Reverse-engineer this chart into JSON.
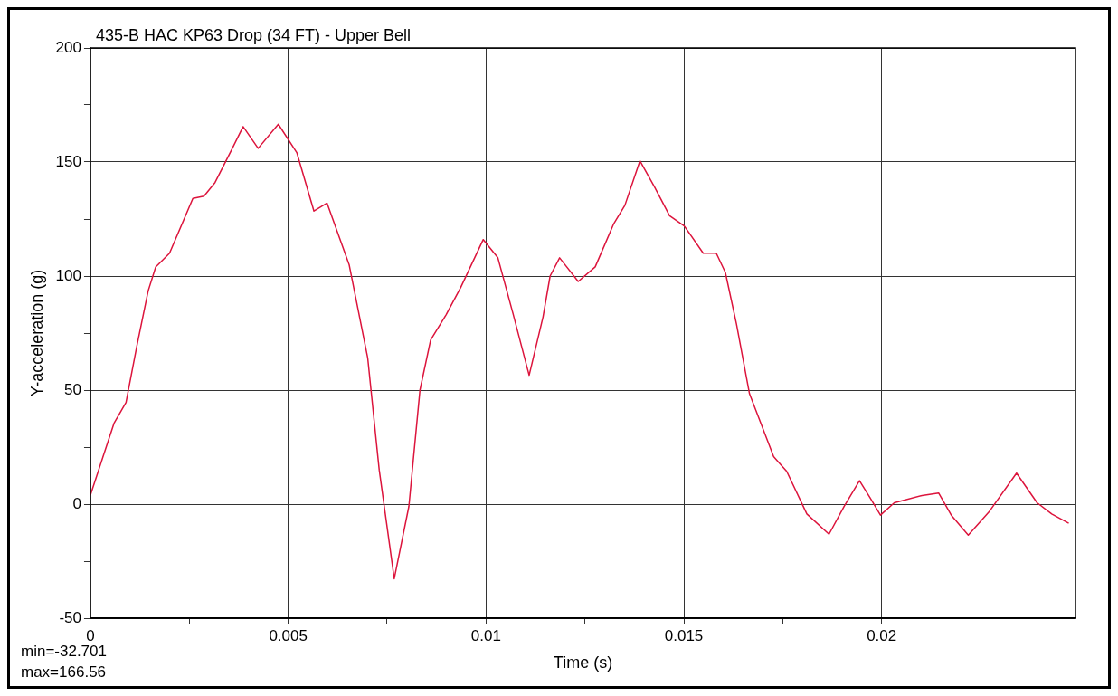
{
  "chart_data": {
    "type": "line",
    "title": "435-B HAC KP63 Drop (34 FT) - Upper Bell",
    "xlabel": "Time (s)",
    "ylabel": "Y-acceleration (g)",
    "annotations": [
      "min=-32.701",
      "max=166.56"
    ],
    "x": [
      0,
      0.0006,
      0.0009,
      0.00117,
      0.00146,
      0.00165,
      0.002,
      0.00259,
      0.00287,
      0.00315,
      0.00353,
      0.00386,
      0.00424,
      0.00475,
      0.00522,
      0.00565,
      0.00598,
      0.00654,
      0.00701,
      0.0073,
      0.00768,
      0.00805,
      0.00833,
      0.0086,
      0.00899,
      0.00936,
      0.00993,
      0.0103,
      0.01068,
      0.01109,
      0.01144,
      0.01162,
      0.01186,
      0.01233,
      0.01276,
      0.01323,
      0.01351,
      0.01389,
      0.01426,
      0.01464,
      0.01501,
      0.01549,
      0.01582,
      0.01605,
      0.01633,
      0.01666,
      0.01727,
      0.0176,
      0.01811,
      0.01867,
      0.01905,
      0.01944,
      0.0197,
      0.01997,
      0.02032,
      0.02102,
      0.02144,
      0.02177,
      0.02219,
      0.02271,
      0.02341,
      0.02393,
      0.0243,
      0.02473
    ],
    "series": [
      {
        "color": "#dc143c",
        "values": [
          4,
          35.6,
          44.6,
          69,
          93.5,
          104,
          110,
          134,
          135,
          141,
          154,
          165.5,
          156,
          166.56,
          154,
          128.5,
          132,
          105,
          64,
          15,
          -32.701,
          -1,
          50,
          72,
          83,
          95,
          116,
          108,
          83.7,
          56.5,
          82,
          100,
          108,
          97.6,
          104,
          123,
          131,
          150.5,
          139,
          126.4,
          122,
          110,
          110,
          101.6,
          79,
          48.4,
          20.8,
          14.4,
          -4.3,
          -13.2,
          -1,
          10.3,
          3,
          -4.8,
          0.6,
          3.8,
          4.9,
          -5.1,
          -13.6,
          -3.5,
          13.6,
          0.6,
          -4.3,
          -8.4
        ]
      }
    ],
    "xlim": [
      0,
      0.0249
    ],
    "xticks": [
      0,
      {
        "value": 0.0025,
        "label": null
      },
      0.005,
      {
        "value": 0.0075,
        "label": null
      },
      0.01,
      {
        "value": 0.0125,
        "label": null
      },
      0.015,
      {
        "value": 0.0175,
        "label": null
      },
      0.02,
      {
        "value": 0.0225,
        "label": null
      }
    ],
    "ylim": [
      -50,
      200
    ],
    "yticks": [
      -50,
      {
        "value": -25,
        "label": null
      },
      0,
      {
        "value": 25,
        "label": null
      },
      50,
      {
        "value": 75,
        "label": null
      },
      100,
      {
        "value": 125,
        "label": null
      },
      150,
      {
        "value": 175,
        "label": null
      },
      200
    ],
    "grid": true,
    "legend": false
  }
}
